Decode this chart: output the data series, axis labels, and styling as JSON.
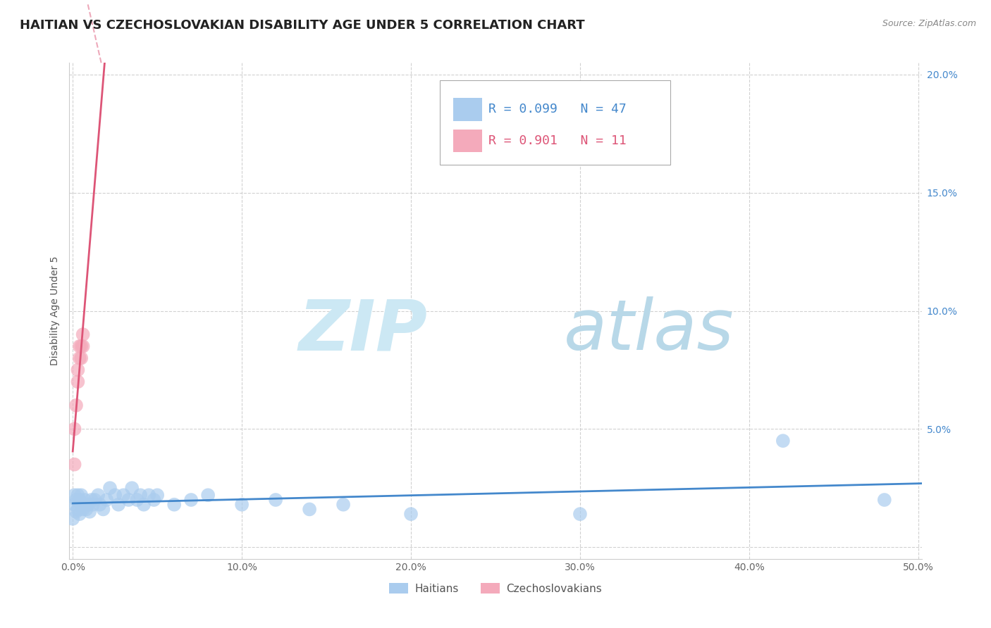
{
  "title": "HAITIAN VS CZECHOSLOVAKIAN DISABILITY AGE UNDER 5 CORRELATION CHART",
  "source": "Source: ZipAtlas.com",
  "ylabel": "Disability Age Under 5",
  "xlabel": "",
  "xlim": [
    -0.002,
    0.502
  ],
  "ylim": [
    -0.005,
    0.205
  ],
  "xticks": [
    0.0,
    0.1,
    0.2,
    0.3,
    0.4,
    0.5
  ],
  "xtick_labels": [
    "0.0%",
    "10.0%",
    "20.0%",
    "30.0%",
    "40.0%",
    "50.0%"
  ],
  "yticks": [
    0.0,
    0.05,
    0.1,
    0.15,
    0.2
  ],
  "right_ytick_labels": [
    "",
    "5.0%",
    "10.0%",
    "15.0%",
    "20.0%"
  ],
  "haitian_color": "#aaccee",
  "czechoslovakian_color": "#f4aabb",
  "haitian_R": 0.099,
  "haitian_N": 47,
  "czechoslovakian_R": 0.901,
  "czechoslovakian_N": 11,
  "haitian_scatter_x": [
    0.0,
    0.001,
    0.001,
    0.002,
    0.002,
    0.003,
    0.003,
    0.004,
    0.004,
    0.005,
    0.005,
    0.006,
    0.007,
    0.007,
    0.008,
    0.009,
    0.01,
    0.011,
    0.012,
    0.013,
    0.015,
    0.016,
    0.018,
    0.02,
    0.022,
    0.025,
    0.027,
    0.03,
    0.033,
    0.035,
    0.038,
    0.04,
    0.042,
    0.045,
    0.048,
    0.05,
    0.06,
    0.07,
    0.08,
    0.1,
    0.12,
    0.14,
    0.16,
    0.2,
    0.3,
    0.42,
    0.48
  ],
  "haitian_scatter_y": [
    0.012,
    0.018,
    0.022,
    0.015,
    0.02,
    0.016,
    0.022,
    0.014,
    0.02,
    0.018,
    0.022,
    0.016,
    0.018,
    0.02,
    0.016,
    0.018,
    0.015,
    0.02,
    0.018,
    0.02,
    0.022,
    0.018,
    0.016,
    0.02,
    0.025,
    0.022,
    0.018,
    0.022,
    0.02,
    0.025,
    0.02,
    0.022,
    0.018,
    0.022,
    0.02,
    0.022,
    0.018,
    0.02,
    0.022,
    0.018,
    0.02,
    0.016,
    0.018,
    0.014,
    0.014,
    0.045,
    0.02
  ],
  "czechoslovakian_scatter_x": [
    0.001,
    0.001,
    0.002,
    0.003,
    0.003,
    0.004,
    0.004,
    0.005,
    0.005,
    0.006,
    0.006
  ],
  "czechoslovakian_scatter_y": [
    0.035,
    0.05,
    0.06,
    0.07,
    0.075,
    0.08,
    0.085,
    0.08,
    0.085,
    0.085,
    0.09
  ],
  "watermark_zip_color": "#cce8f4",
  "watermark_atlas_color": "#b8d8e8",
  "background_color": "#ffffff",
  "grid_color": "#cccccc",
  "trendline_haitian_color": "#4488cc",
  "trendline_czechoslovakian_color": "#dd5577",
  "title_fontsize": 13,
  "axis_label_fontsize": 10,
  "tick_fontsize": 10,
  "legend_fontsize": 13,
  "right_tick_color": "#4488cc"
}
